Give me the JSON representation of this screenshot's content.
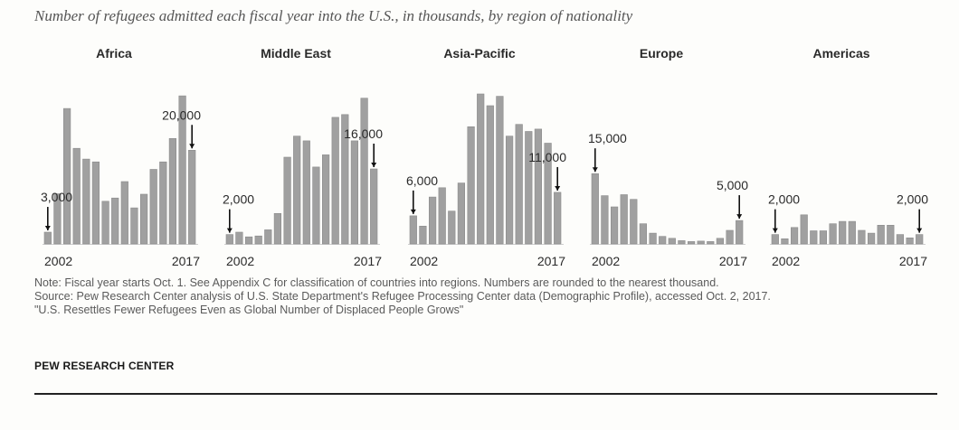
{
  "title": "Number of refugees admitted each fiscal year into the U.S., in thousands, by region of nationality",
  "chart_data": [
    {
      "type": "bar",
      "title": "Africa",
      "x": [
        2002,
        2003,
        2004,
        2005,
        2006,
        2007,
        2008,
        2009,
        2010,
        2011,
        2012,
        2013,
        2014,
        2015,
        2016,
        2017
      ],
      "values": [
        2.5,
        10.7,
        28.9,
        20.4,
        18.1,
        17.5,
        9.1,
        9.8,
        13.3,
        7.7,
        10.6,
        15.9,
        17.5,
        22.5,
        31.6,
        20.0
      ],
      "start_label": "3,000",
      "end_label": "20,000",
      "tick_labels": [
        "2002",
        "2017"
      ],
      "ylim": [
        0,
        32
      ]
    },
    {
      "type": "bar",
      "title": "Middle East",
      "x": [
        2002,
        2003,
        2004,
        2005,
        2006,
        2007,
        2008,
        2009,
        2010,
        2011,
        2012,
        2013,
        2014,
        2015,
        2016,
        2017
      ],
      "values": [
        2.0,
        2.5,
        1.5,
        1.7,
        3.0,
        6.5,
        18.5,
        23.0,
        22.0,
        16.4,
        19.0,
        27.0,
        27.6,
        22.0,
        31.1,
        16.0
      ],
      "start_label": "2,000",
      "end_label": "16,000",
      "tick_labels": [
        "2002",
        "2017"
      ],
      "ylim": [
        0,
        32
      ]
    },
    {
      "type": "bar",
      "title": "Asia-Pacific",
      "x": [
        2002,
        2003,
        2004,
        2005,
        2006,
        2007,
        2008,
        2009,
        2010,
        2011,
        2012,
        2013,
        2014,
        2015,
        2016,
        2017
      ],
      "values": [
        6.0,
        3.8,
        10.0,
        12.0,
        7.0,
        13.0,
        25.0,
        32.0,
        29.5,
        31.5,
        23.0,
        25.5,
        24.0,
        24.5,
        21.5,
        11.0
      ],
      "start_label": "6,000",
      "end_label": "11,000",
      "tick_labels": [
        "2002",
        "2017"
      ],
      "ylim": [
        0,
        32
      ]
    },
    {
      "type": "bar",
      "title": "Europe",
      "x": [
        2002,
        2003,
        2004,
        2005,
        2006,
        2007,
        2008,
        2009,
        2010,
        2011,
        2012,
        2013,
        2014,
        2015,
        2016,
        2017
      ],
      "values": [
        15.0,
        10.3,
        7.9,
        10.5,
        9.5,
        4.3,
        2.3,
        1.6,
        1.2,
        0.7,
        0.5,
        0.6,
        0.5,
        1.2,
        2.9,
        5.0
      ],
      "start_label": "15,000",
      "end_label": "5,000",
      "tick_labels": [
        "2002",
        "2017"
      ],
      "ylim": [
        0,
        32
      ]
    },
    {
      "type": "bar",
      "title": "Americas",
      "x": [
        2002,
        2003,
        2004,
        2005,
        2006,
        2007,
        2008,
        2009,
        2010,
        2011,
        2012,
        2013,
        2014,
        2015,
        2016,
        2017
      ],
      "values": [
        2.0,
        1.1,
        3.5,
        6.2,
        2.8,
        2.8,
        4.3,
        4.8,
        4.8,
        2.9,
        2.3,
        4.0,
        4.0,
        2.0,
        1.3,
        2.0
      ],
      "start_label": "2,000",
      "end_label": "2,000",
      "tick_labels": [
        "2002",
        "2017"
      ],
      "ylim": [
        0,
        32
      ]
    }
  ],
  "colors": {
    "bar": "#a0a0a0",
    "bar_edge": "#8a8a8a",
    "text": "#2a2a2a",
    "baseline": "#cfcfcf"
  },
  "notes": {
    "note": "Note: Fiscal year starts Oct. 1. See Appendix C for classification of countries into regions. Numbers are rounded to the nearest thousand.",
    "source": "Source: Pew Research Center analysis of U.S. State Department's Refugee Processing Center data (Demographic Profile), accessed Oct. 2, 2017.",
    "report": "\"U.S. Resettles Fewer Refugees Even as Global Number of Displaced People Grows\""
  },
  "brand": "PEW RESEARCH CENTER"
}
